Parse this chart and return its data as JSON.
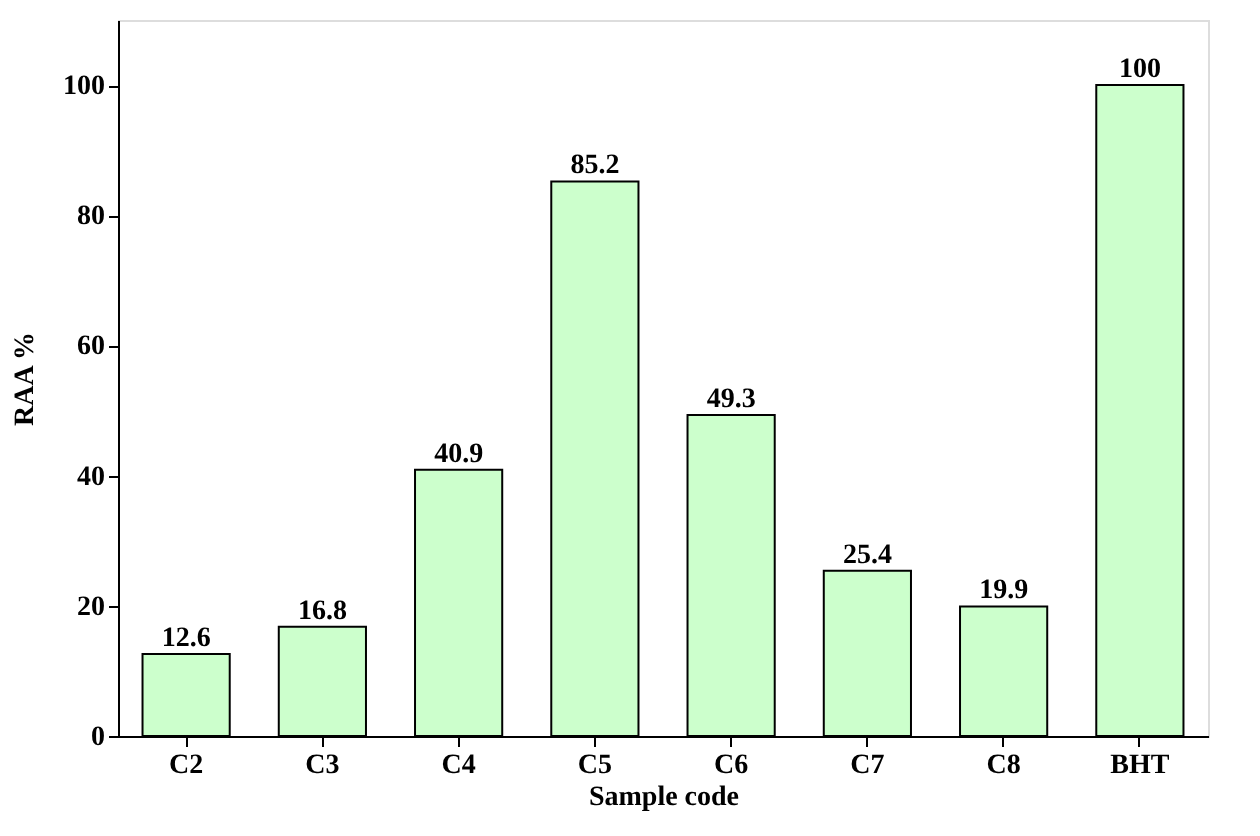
{
  "chart_data": {
    "type": "bar",
    "xlabel": "Sample code",
    "ylabel": "RAA %",
    "categories": [
      "C2",
      "C3",
      "C4",
      "C5",
      "C6",
      "C7",
      "C8",
      "BHT"
    ],
    "values": [
      12.6,
      16.8,
      40.9,
      85.2,
      49.3,
      25.4,
      19.9,
      100
    ],
    "color": "#ccffcc",
    "ylim": [
      0,
      110
    ],
    "yticks": [
      0,
      20,
      40,
      60,
      80,
      100
    ],
    "grid": false,
    "data_labels": true
  }
}
